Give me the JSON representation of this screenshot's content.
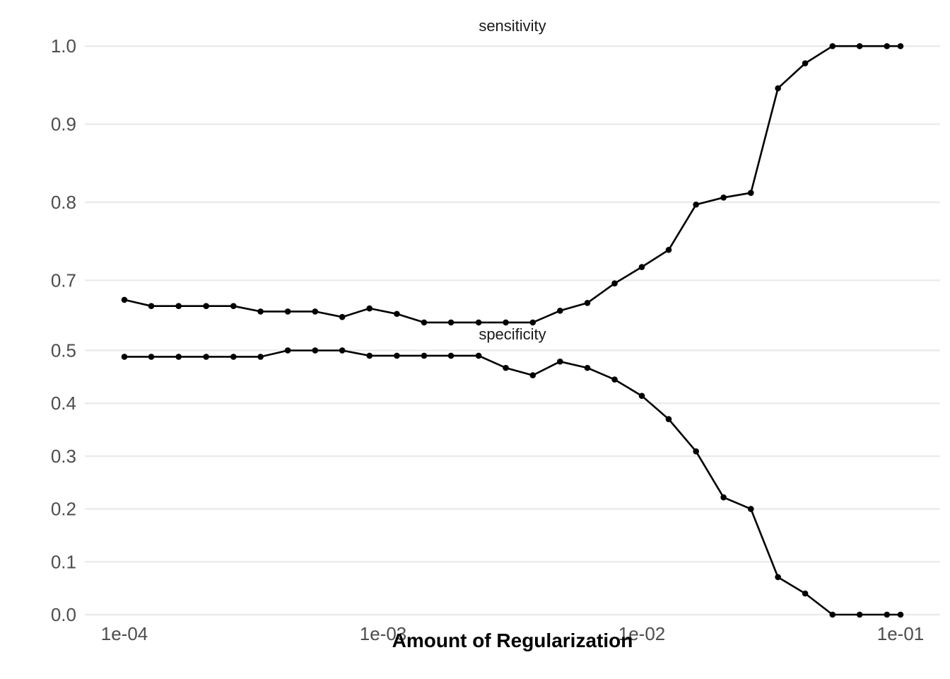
{
  "chart_data": {
    "type": "line",
    "xlabel": "Amount of Regularization",
    "x_scale": "log10",
    "x_ticks": [
      0.0001,
      0.001,
      0.01,
      0.1
    ],
    "x_tick_labels": [
      "1e-04",
      "1e-03",
      "1e-02",
      "1e-01"
    ],
    "grid": true,
    "x": [
      0.0001,
      0.000127,
      0.000162,
      0.000207,
      0.000264,
      0.000336,
      0.000428,
      0.000546,
      0.000695,
      0.000886,
      0.00113,
      0.00144,
      0.00183,
      0.00234,
      0.00298,
      0.00379,
      0.00483,
      0.00616,
      0.00785,
      0.01,
      0.0127,
      0.0162,
      0.0207,
      0.0264,
      0.0336,
      0.0428,
      0.0546,
      0.0695,
      0.0886,
      0.1
    ],
    "panels": [
      {
        "title": "sensitivity",
        "ylim": [
          0.645,
          1.012
        ],
        "y_ticks": [
          0.7,
          0.8,
          0.9,
          1.0
        ],
        "y_tick_labels": [
          "0.7",
          "0.8",
          "0.9",
          "1.0"
        ],
        "values": [
          0.675,
          0.667,
          0.667,
          0.667,
          0.667,
          0.66,
          0.66,
          0.66,
          0.653,
          0.664,
          0.657,
          0.646,
          0.646,
          0.646,
          0.646,
          0.646,
          0.661,
          0.671,
          0.696,
          0.717,
          0.739,
          0.797,
          0.806,
          0.812,
          0.946,
          0.978,
          1.0,
          1.0,
          1.0,
          1.0
        ]
      },
      {
        "title": "specificity",
        "ylim": [
          0.0,
          0.51
        ],
        "y_ticks": [
          0.0,
          0.1,
          0.2,
          0.3,
          0.4,
          0.5
        ],
        "y_tick_labels": [
          "0.0",
          "0.1",
          "0.2",
          "0.3",
          "0.4",
          "0.5"
        ],
        "values": [
          0.488,
          0.488,
          0.488,
          0.488,
          0.488,
          0.488,
          0.5,
          0.5,
          0.5,
          0.49,
          0.49,
          0.49,
          0.49,
          0.49,
          0.467,
          0.453,
          0.479,
          0.467,
          0.445,
          0.414,
          0.37,
          0.309,
          0.222,
          0.2,
          0.071,
          0.04,
          0.0,
          0.0,
          0.0,
          0.0
        ]
      }
    ]
  }
}
